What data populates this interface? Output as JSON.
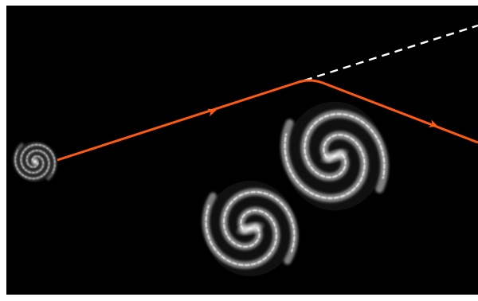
{
  "diagram": {
    "kind": "gravitational-lensing-illustration",
    "colors": {
      "background": "#000000",
      "border": "#ffffff",
      "light_ray": "#ff5a14",
      "original_direction_dashed": "#ffffff",
      "galaxy_glow": "#e8e8e8"
    },
    "objects": [
      {
        "name": "source-galaxy",
        "icon": "small-spiral-galaxy-icon"
      },
      {
        "name": "lens-galaxy-upper",
        "icon": "spiral-galaxy-icon"
      },
      {
        "name": "lens-galaxy-lower",
        "icon": "spiral-galaxy-icon"
      }
    ],
    "ray": {
      "segments": 3,
      "arrowheads": 2,
      "shows_undeflected_continuation": true
    }
  }
}
